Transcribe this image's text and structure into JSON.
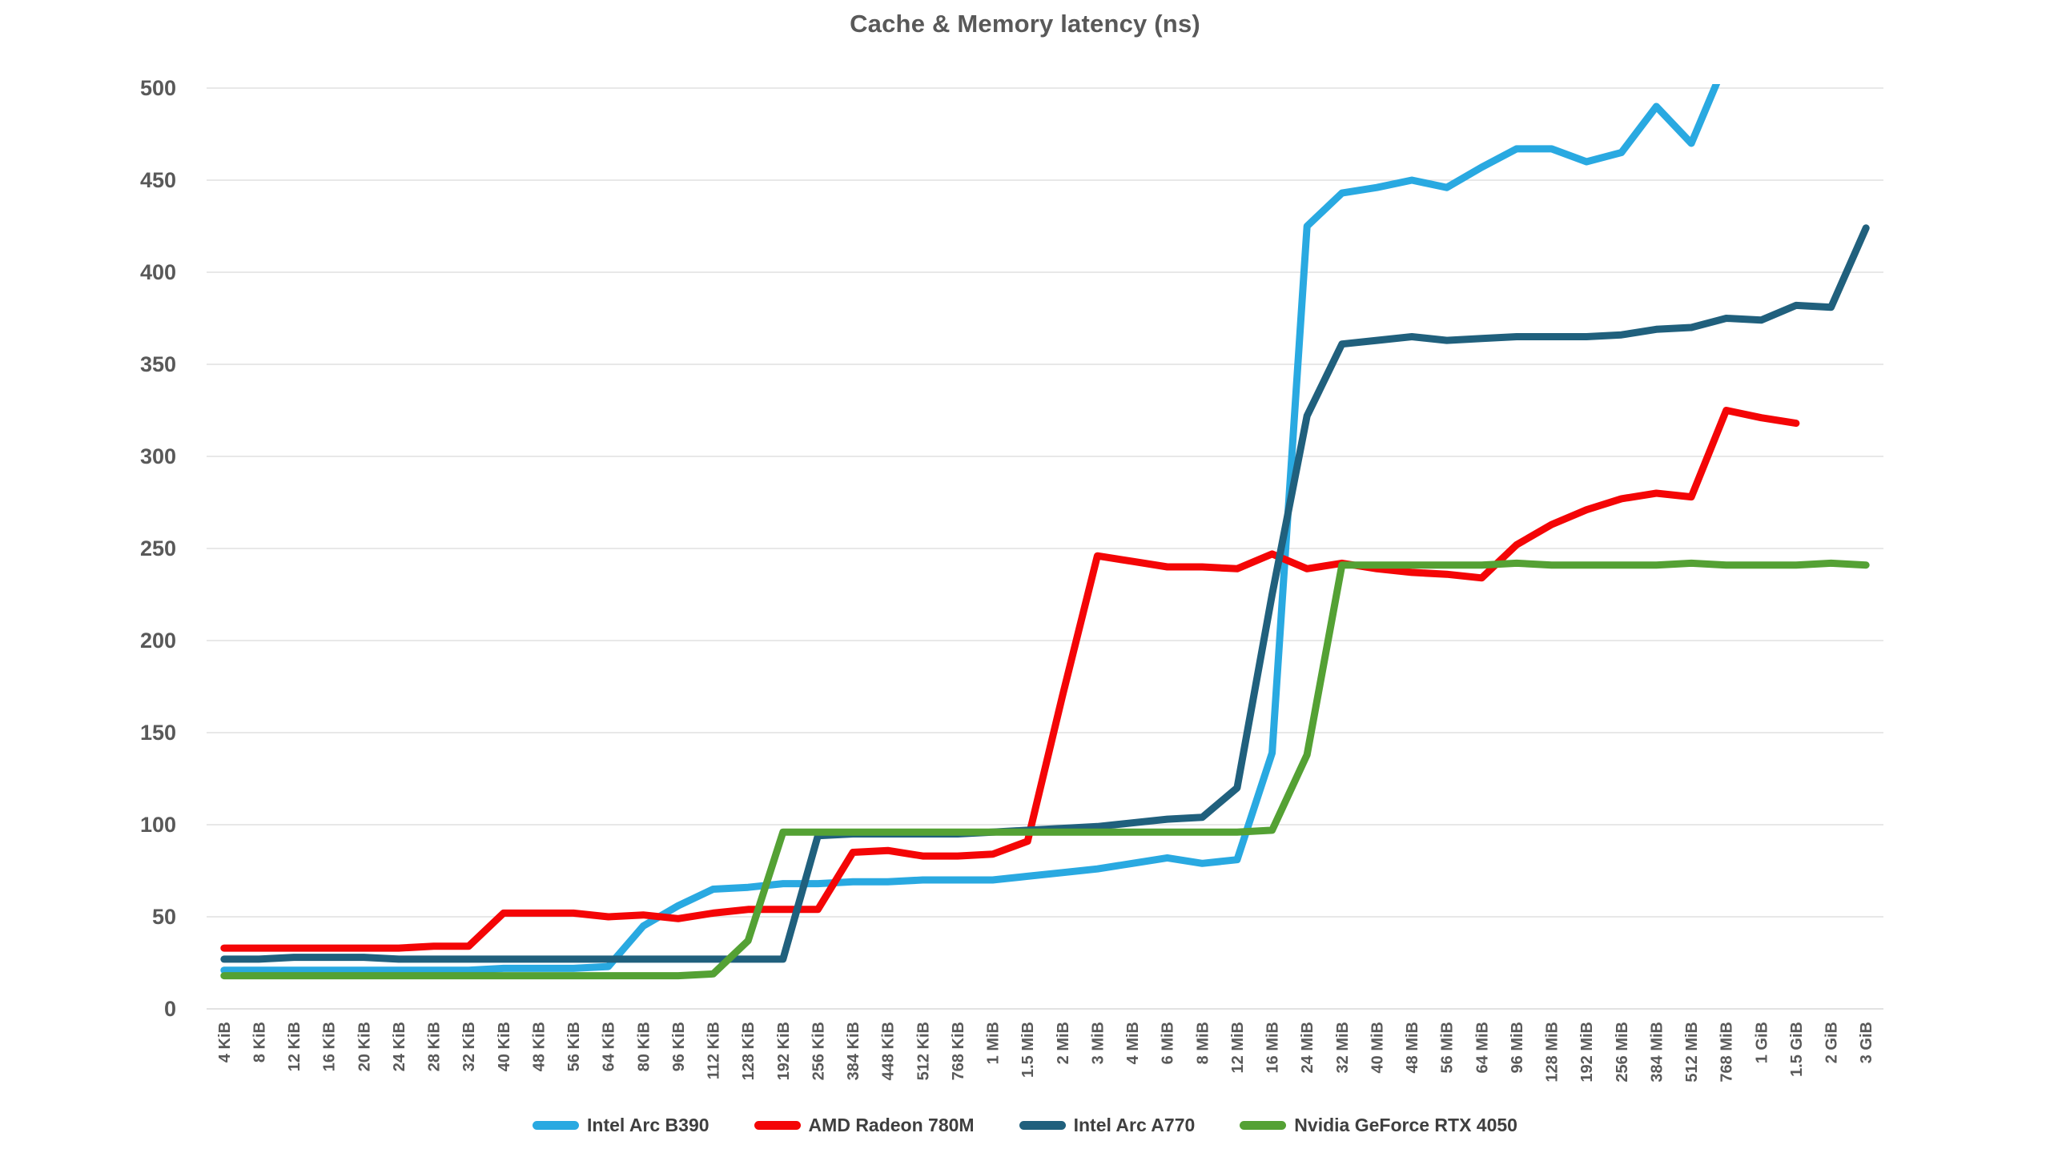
{
  "colors": {
    "background": "#FFFFFF",
    "gridline": "#D9D9D9",
    "axis_text": "#595959",
    "title_text": "#595959",
    "legend_text": "#3F3F3F"
  },
  "chart_data": {
    "type": "line",
    "title": "Cache & Memory latency (ns)",
    "xlabel": "",
    "ylabel": "",
    "ylim": [
      0,
      500
    ],
    "yticks": [
      0,
      50,
      100,
      150,
      200,
      250,
      300,
      350,
      400,
      450,
      500
    ],
    "grid": true,
    "legend_position": "bottom",
    "clip_to_ylim": true,
    "categories": [
      "4 KiB",
      "8 KiB",
      "12 KiB",
      "16 KiB",
      "20 KiB",
      "24 KiB",
      "28 KiB",
      "32 KiB",
      "40 KiB",
      "48 KiB",
      "56 KiB",
      "64 KiB",
      "80 KiB",
      "96 KiB",
      "112 KiB",
      "128 KiB",
      "192 KiB",
      "256 KiB",
      "384 KiB",
      "448 KiB",
      "512 KiB",
      "768 KiB",
      "1 MiB",
      "1.5 MiB",
      "2 MiB",
      "3 MiB",
      "4 MiB",
      "6 MiB",
      "8 MiB",
      "12 MiB",
      "16 MiB",
      "24 MiB",
      "32 MiB",
      "40 MiB",
      "48 MiB",
      "56 MiB",
      "64 MiB",
      "96 MiB",
      "128 MiB",
      "192 MiB",
      "256 MiB",
      "384 MiB",
      "512 MiB",
      "768 MiB",
      "1 GiB",
      "1.5 GiB",
      "2 GiB",
      "3 GiB"
    ],
    "series": [
      {
        "name": "Intel Arc B390",
        "color": "#29A9E1",
        "values": [
          21,
          21,
          21,
          21,
          21,
          21,
          21,
          21,
          22,
          22,
          22,
          23,
          45,
          56,
          65,
          66,
          68,
          68,
          69,
          69,
          70,
          70,
          70,
          72,
          74,
          76,
          79,
          82,
          79,
          81,
          139,
          425,
          443,
          446,
          450,
          446,
          457,
          467,
          467,
          460,
          465,
          490,
          470,
          515,
          null,
          null,
          null,
          null
        ]
      },
      {
        "name": "AMD Radeon 780M",
        "color": "#F40506",
        "values": [
          33,
          33,
          33,
          33,
          33,
          33,
          34,
          34,
          52,
          52,
          52,
          50,
          51,
          49,
          52,
          54,
          54,
          54,
          85,
          86,
          83,
          83,
          84,
          91,
          170,
          246,
          243,
          240,
          240,
          239,
          247,
          239,
          242,
          239,
          237,
          236,
          234,
          252,
          263,
          271,
          277,
          280,
          278,
          325,
          321,
          318,
          null,
          null
        ]
      },
      {
        "name": "Intel Arc A770",
        "color": "#20607D",
        "values": [
          27,
          27,
          28,
          28,
          28,
          27,
          27,
          27,
          27,
          27,
          27,
          27,
          27,
          27,
          27,
          27,
          27,
          94,
          95,
          95,
          95,
          95,
          96,
          97,
          98,
          99,
          101,
          103,
          104,
          120,
          225,
          322,
          361,
          363,
          365,
          363,
          364,
          365,
          365,
          365,
          366,
          369,
          370,
          375,
          374,
          382,
          381,
          424
        ]
      },
      {
        "name": "Nvidia GeForce RTX 4050",
        "color": "#54A134",
        "values": [
          18,
          18,
          18,
          18,
          18,
          18,
          18,
          18,
          18,
          18,
          18,
          18,
          18,
          18,
          19,
          37,
          96,
          96,
          96,
          96,
          96,
          96,
          96,
          96,
          96,
          96,
          96,
          96,
          96,
          96,
          97,
          138,
          241,
          241,
          241,
          241,
          241,
          242,
          241,
          241,
          241,
          241,
          242,
          241,
          241,
          241,
          242,
          241
        ]
      }
    ]
  },
  "legend": {
    "entries": [
      {
        "label": "Intel Arc B390"
      },
      {
        "label": "AMD Radeon 780M"
      },
      {
        "label": "Intel Arc A770"
      },
      {
        "label": "Nvidia GeForce RTX 4050"
      }
    ]
  }
}
